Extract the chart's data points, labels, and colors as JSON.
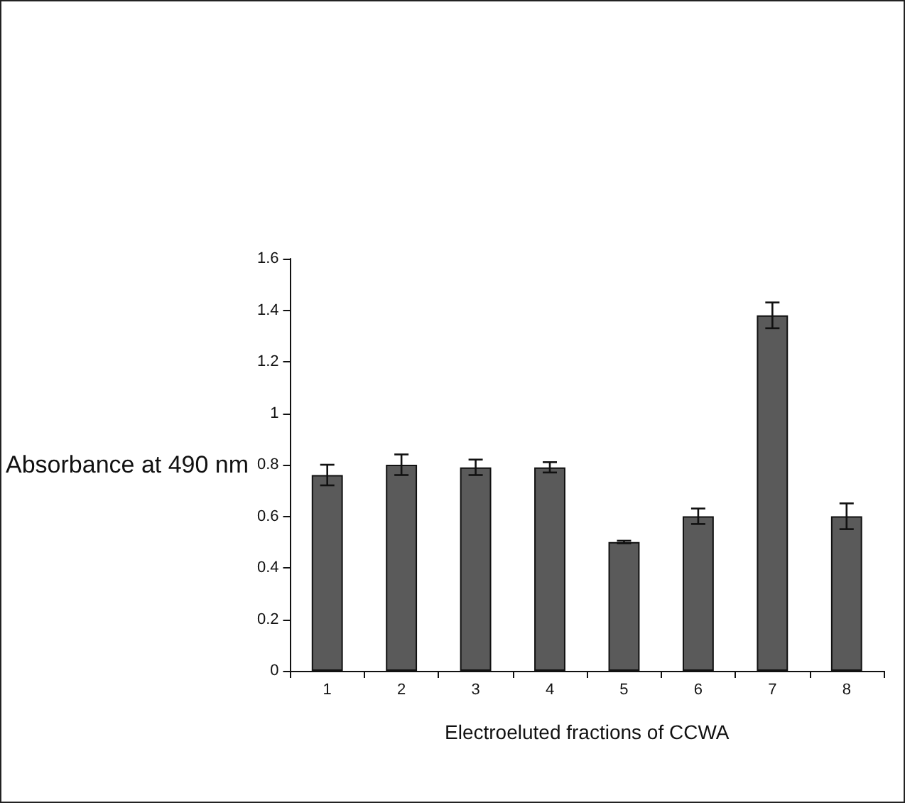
{
  "chart_data": {
    "type": "bar",
    "xlabel": "Electroeluted fractions of CCWA",
    "ylabel": "Absorbance at 490 nm",
    "categories": [
      "1",
      "2",
      "3",
      "4",
      "5",
      "6",
      "7",
      "8"
    ],
    "values": [
      0.76,
      0.8,
      0.79,
      0.79,
      0.5,
      0.6,
      1.38,
      0.6
    ],
    "errors": [
      0.04,
      0.04,
      0.03,
      0.02,
      0.005,
      0.03,
      0.05,
      0.05
    ],
    "color": "#5a5a5a",
    "ylim": [
      0,
      1.6
    ],
    "yticks": [
      0,
      0.2,
      0.4,
      0.6,
      0.8,
      1,
      1.2,
      1.4,
      1.6
    ],
    "grid": false
  }
}
